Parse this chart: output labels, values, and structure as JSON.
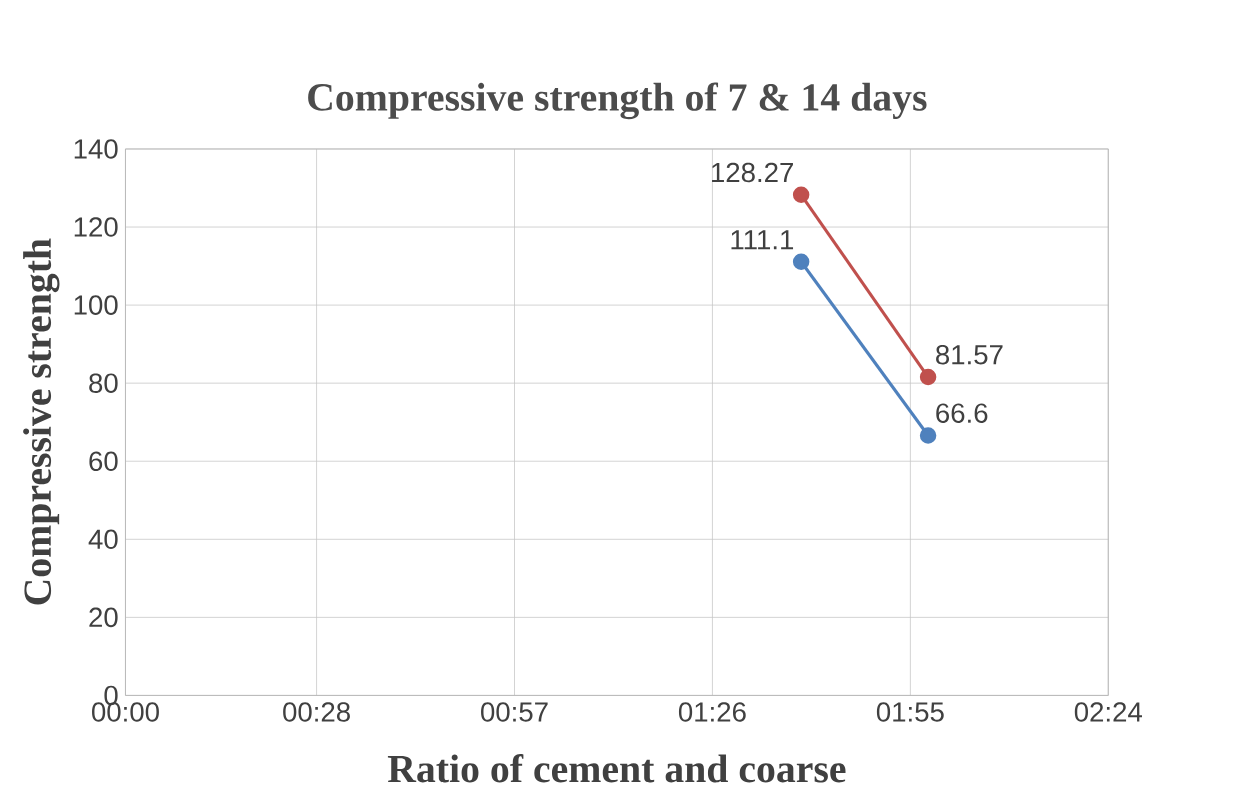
{
  "chart_data": {
    "type": "line",
    "title": "Compressive strength of 7 & 14 days",
    "xlabel": "Ratio of cement and coarse",
    "ylabel": "Compressive strength",
    "xlim": [
      0,
      2.4
    ],
    "xticks": [
      {
        "value": 0,
        "label": "00:00"
      },
      {
        "value": 0.4667,
        "label": "00:28"
      },
      {
        "value": 0.95,
        "label": "00:57"
      },
      {
        "value": 1.4333,
        "label": "01:26"
      },
      {
        "value": 1.9167,
        "label": "01:55"
      },
      {
        "value": 2.4,
        "label": "02:24"
      }
    ],
    "x": [
      1.65,
      1.96
    ],
    "ylim": [
      0,
      140
    ],
    "yticks": [
      0,
      20,
      40,
      60,
      80,
      100,
      120,
      140
    ],
    "series": [
      {
        "color": "#c0504d",
        "values": [
          128.27,
          81.57
        ]
      },
      {
        "color": "#4f81bd",
        "values": [
          111.1,
          66.6
        ]
      }
    ],
    "data_labels": true,
    "grid": true,
    "marker": "circle",
    "line_style": "solid"
  }
}
